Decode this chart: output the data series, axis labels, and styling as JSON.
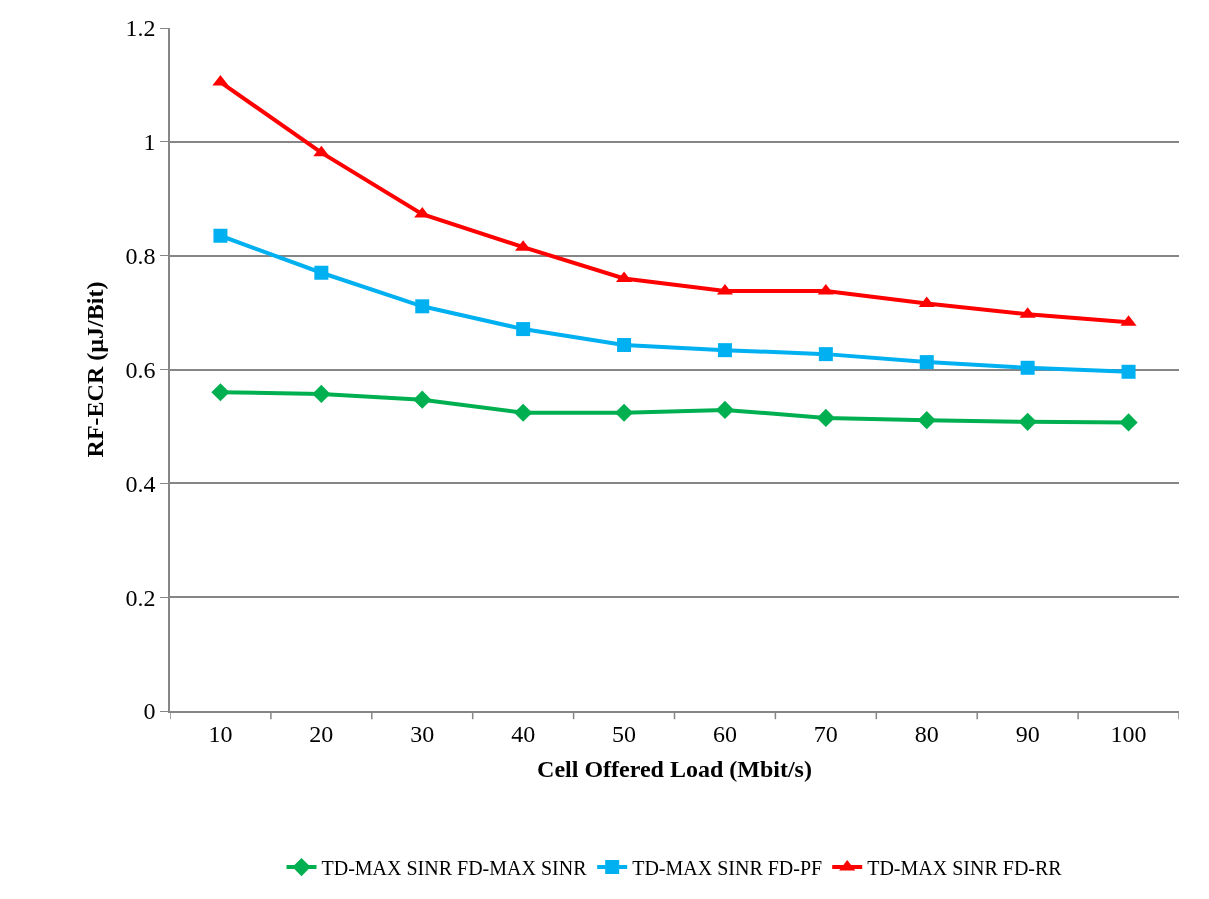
{
  "chart_data": {
    "type": "line",
    "xlabel": "Cell Offered Load (Mbit/s)",
    "ylabel": "RF-ECR (µJ/Bit)",
    "categories": [
      "10",
      "20",
      "30",
      "40",
      "50",
      "60",
      "70",
      "80",
      "90",
      "100"
    ],
    "series": [
      {
        "name": "TD-MAX SINR FD-MAX SINR",
        "color": "#00b050",
        "marker": "diamond",
        "values": [
          0.56,
          0.557,
          0.547,
          0.524,
          0.524,
          0.529,
          0.515,
          0.511,
          0.508,
          0.507
        ]
      },
      {
        "name": "TD-MAX SINR FD-PF",
        "color": "#00b0f0",
        "marker": "square",
        "values": [
          0.835,
          0.77,
          0.711,
          0.671,
          0.643,
          0.634,
          0.627,
          0.613,
          0.603,
          0.596
        ]
      },
      {
        "name": "TD-MAX SINR FD-RR",
        "color": "#ff0000",
        "marker": "triangle",
        "values": [
          1.105,
          0.981,
          0.873,
          0.815,
          0.76,
          0.738,
          0.738,
          0.716,
          0.697,
          0.683
        ]
      }
    ],
    "ylim": [
      0,
      1.2
    ],
    "yticks": [
      0,
      0.2,
      0.4,
      0.6,
      0.8,
      1,
      1.2
    ],
    "grid": "y",
    "legend": "bottom",
    "line_style": "solid"
  }
}
